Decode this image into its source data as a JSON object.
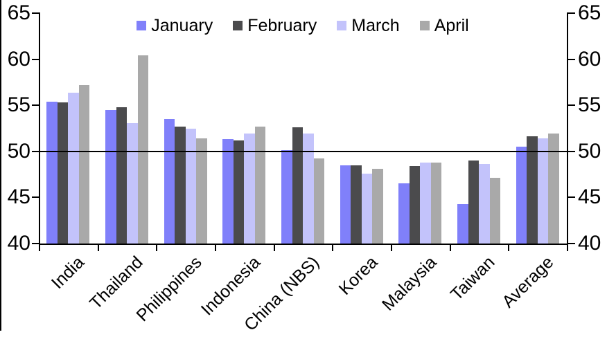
{
  "chart_data": {
    "type": "bar",
    "categories": [
      "India",
      "Thailand",
      "Philippines",
      "Indonesia",
      "China (NBS)",
      "Korea",
      "Malaysia",
      "Taiwan",
      "Average"
    ],
    "series": [
      {
        "name": "January",
        "color": "#8080FA",
        "values": [
          55.4,
          54.5,
          53.5,
          51.3,
          50.1,
          48.5,
          46.5,
          44.3,
          50.5
        ]
      },
      {
        "name": "February",
        "color": "#4B4B4D",
        "values": [
          55.3,
          54.8,
          52.7,
          51.2,
          52.6,
          48.5,
          48.4,
          49.0,
          51.6
        ]
      },
      {
        "name": "March",
        "color": "#C3C3FB",
        "values": [
          56.4,
          53.1,
          52.5,
          51.9,
          51.9,
          47.6,
          48.8,
          48.6,
          51.4
        ]
      },
      {
        "name": "April",
        "color": "#A9A9A9",
        "values": [
          57.2,
          60.4,
          51.4,
          52.7,
          49.2,
          48.1,
          48.8,
          47.1,
          51.9
        ]
      }
    ],
    "ylim": [
      40,
      65
    ],
    "yticks": [
      40,
      45,
      50,
      55,
      60,
      65
    ],
    "dual_y_axis": true,
    "reference_line": 50,
    "legend_position": "top-center",
    "grid": false,
    "axis_color": "#000000",
    "text_color": "#000000",
    "background_color": "#FFFFFF"
  }
}
